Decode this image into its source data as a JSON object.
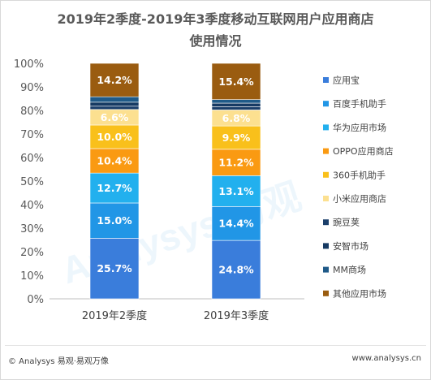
{
  "title_line1": "2019年2季度-2019年3季度移动互联网用户应用商店",
  "title_line2": "使用情况",
  "footer": {
    "left": "© Analysys 易观·易观万像",
    "right": "www.analysys.cn"
  },
  "watermark_text": "Analysys 易观",
  "chart_data": {
    "type": "bar",
    "stacked": true,
    "percent_stacked": true,
    "categories": [
      "2019年2季度",
      "2019年3季度"
    ],
    "yticks": [
      "0%",
      "10%",
      "20%",
      "30%",
      "40%",
      "50%",
      "60%",
      "70%",
      "80%",
      "90%",
      "100%"
    ],
    "ylim": [
      0,
      100
    ],
    "legend_position": "right",
    "series": [
      {
        "name": "应用宝",
        "color": "#3a7ddb",
        "text_color": "#ffffff",
        "values": [
          25.7,
          24.8
        ],
        "labels": [
          "25.7%",
          "24.8%"
        ]
      },
      {
        "name": "百度手机助手",
        "color": "#2196e6",
        "text_color": "#ffffff",
        "values": [
          15.0,
          14.4
        ],
        "labels": [
          "15.0%",
          "14.4%"
        ]
      },
      {
        "name": "华为应用市场",
        "color": "#22b0ee",
        "text_color": "#ffffff",
        "values": [
          12.7,
          13.1
        ],
        "labels": [
          "12.7%",
          "13.1%"
        ]
      },
      {
        "name": "OPPO应用商店",
        "color": "#fa9a12",
        "text_color": "#ffffff",
        "values": [
          10.4,
          11.2
        ],
        "labels": [
          "10.4%",
          "11.2%"
        ]
      },
      {
        "name": "360手机助手",
        "color": "#f9c01b",
        "text_color": "#ffffff",
        "values": [
          10.0,
          9.9
        ],
        "labels": [
          "10.0%",
          "9.9%"
        ]
      },
      {
        "name": "小米应用商店",
        "color": "#fce090",
        "text_color": "#ffffff",
        "values": [
          6.6,
          6.8
        ],
        "labels": [
          "6.6%",
          "6.8%"
        ]
      },
      {
        "name": "豌豆荚",
        "color": "#1b3f6b",
        "text_color": "#ffffff",
        "values": [
          1.4,
          1.4
        ],
        "labels": [
          "",
          ""
        ]
      },
      {
        "name": "安智市场",
        "color": "#163a63",
        "text_color": "#ffffff",
        "values": [
          1.7,
          1.5
        ],
        "labels": [
          "",
          ""
        ]
      },
      {
        "name": "MM商场",
        "color": "#1f5a88",
        "text_color": "#ffffff",
        "values": [
          2.3,
          1.5
        ],
        "labels": [
          "",
          ""
        ]
      },
      {
        "name": "其他应用市场",
        "color": "#9a5c10",
        "text_color": "#ffffff",
        "values": [
          14.2,
          15.4
        ],
        "labels": [
          "14.2%",
          "15.4%"
        ]
      }
    ]
  }
}
